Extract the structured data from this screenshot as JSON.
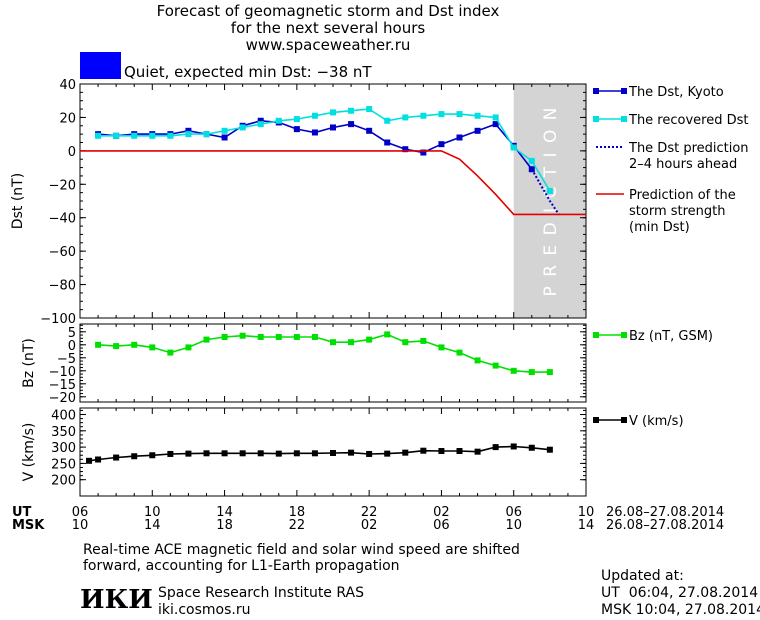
{
  "header": {
    "title_line1": "Forecast of geomagnetic storm and Dst index",
    "title_line2": "for the next several hours",
    "title_line3": "www.spaceweather.ru",
    "status_text": "Quiet, expected min Dst: −38 nT",
    "status_color": "#0000ff"
  },
  "footer": {
    "note_line1": "Real-time ACE magnetic field and solar wind speed are shifted",
    "note_line2": "forward, accounting for L1-Earth propagation",
    "institute": "Space Research Institute RAS",
    "site": "iki.cosmos.ru",
    "logo_text": "ИКИ",
    "updated_label": "Updated at:",
    "updated_ut": "UT  06:04, 27.08.2014",
    "updated_msk": "MSK 10:04, 27.08.2014"
  },
  "time_axis": {
    "ut_label": "UT",
    "msk_label": "MSK",
    "ut_ticks": [
      "06",
      "10",
      "14",
      "18",
      "22",
      "02",
      "06",
      "10"
    ],
    "msk_ticks": [
      "10",
      "14",
      "18",
      "22",
      "02",
      "06",
      "10",
      "14"
    ],
    "ut_range": "26.08–27.08.2014",
    "msk_range": "26.08–27.08.2014"
  },
  "chart_data": [
    {
      "type": "line",
      "ylabel": "Dst (nT)",
      "ylim": [
        -100,
        40
      ],
      "yticks": [
        "40",
        "20",
        "0",
        "−20",
        "−40",
        "−60",
        "−80",
        "−100"
      ],
      "xlim": [
        0,
        28
      ],
      "prediction_region": [
        24,
        28
      ],
      "prediction_label": "PREDICTION",
      "series": [
        {
          "name": "The Dst, Kyoto",
          "color": "#0000c8",
          "style": "line-square",
          "x": [
            1,
            2,
            3,
            4,
            5,
            6,
            7,
            8,
            9,
            10,
            11,
            12,
            13,
            14,
            15,
            16,
            17,
            18,
            19,
            20,
            21,
            22,
            23,
            24,
            25
          ],
          "y": [
            10,
            9,
            10,
            10,
            10,
            12,
            10,
            8,
            15,
            18,
            17,
            13,
            11,
            14,
            16,
            12,
            5,
            1,
            -1,
            4,
            8,
            12,
            16,
            3,
            -11
          ]
        },
        {
          "name": "The recovered Dst",
          "color": "#00e0e0",
          "style": "line-square",
          "x": [
            1,
            2,
            3,
            4,
            5,
            6,
            7,
            8,
            9,
            10,
            11,
            12,
            13,
            14,
            15,
            16,
            17,
            18,
            19,
            20,
            21,
            22,
            23,
            24,
            25,
            26
          ],
          "y": [
            9,
            9,
            9,
            9,
            9,
            10,
            10,
            12,
            14,
            16,
            18,
            19,
            21,
            23,
            24,
            25,
            18,
            20,
            21,
            22,
            22,
            21,
            20,
            2,
            -6,
            -24
          ]
        },
        {
          "name": "The Dst prediction\n2–4 hours ahead",
          "color": "#0000c8",
          "style": "dotted",
          "x": [
            25,
            26,
            26.5
          ],
          "y": [
            -11,
            -30,
            -38
          ]
        },
        {
          "name": "Prediction of the\nstorm strength\n(min Dst)",
          "color": "#e00000",
          "style": "line",
          "x": [
            0,
            20,
            21,
            22,
            23,
            24,
            28
          ],
          "y": [
            0,
            0,
            -5,
            -15,
            -26,
            -38,
            -38
          ]
        }
      ]
    },
    {
      "type": "line",
      "ylabel": "Bz (nT)",
      "ylim": [
        -22,
        8
      ],
      "yticks": [
        "5",
        "0",
        "−5",
        "−10",
        "−15",
        "−20"
      ],
      "xlim": [
        0,
        28
      ],
      "series": [
        {
          "name": "Bz (nT, GSM)",
          "color": "#00e000",
          "style": "line-square",
          "x": [
            1,
            2,
            3,
            4,
            5,
            6,
            7,
            8,
            9,
            10,
            11,
            12,
            13,
            14,
            15,
            16,
            17,
            18,
            19,
            20,
            21,
            22,
            23,
            24,
            25,
            26
          ],
          "y": [
            0,
            -0.5,
            0,
            -1,
            -3,
            -1,
            2,
            3,
            3.5,
            3,
            3,
            3,
            3,
            1,
            1,
            2,
            4,
            1,
            1.5,
            -1,
            -3,
            -6,
            -8,
            -10,
            -10.5,
            -10.5
          ]
        }
      ]
    },
    {
      "type": "line",
      "ylabel": "V (km/s)",
      "ylim": [
        150,
        420
      ],
      "yticks": [
        "400",
        "350",
        "300",
        "250",
        "200"
      ],
      "xlim": [
        0,
        28
      ],
      "series": [
        {
          "name": "V (km/s)",
          "color": "#000000",
          "style": "line-square",
          "x": [
            0.5,
            1,
            2,
            3,
            4,
            5,
            6,
            7,
            8,
            9,
            10,
            11,
            12,
            13,
            14,
            15,
            16,
            17,
            18,
            19,
            20,
            21,
            22,
            23,
            24,
            25,
            26
          ],
          "y": [
            258,
            262,
            268,
            272,
            275,
            279,
            280,
            281,
            281,
            281,
            281,
            280,
            281,
            281,
            282,
            283,
            279,
            280,
            283,
            289,
            288,
            288,
            286,
            300,
            302,
            298,
            292
          ]
        }
      ]
    }
  ]
}
